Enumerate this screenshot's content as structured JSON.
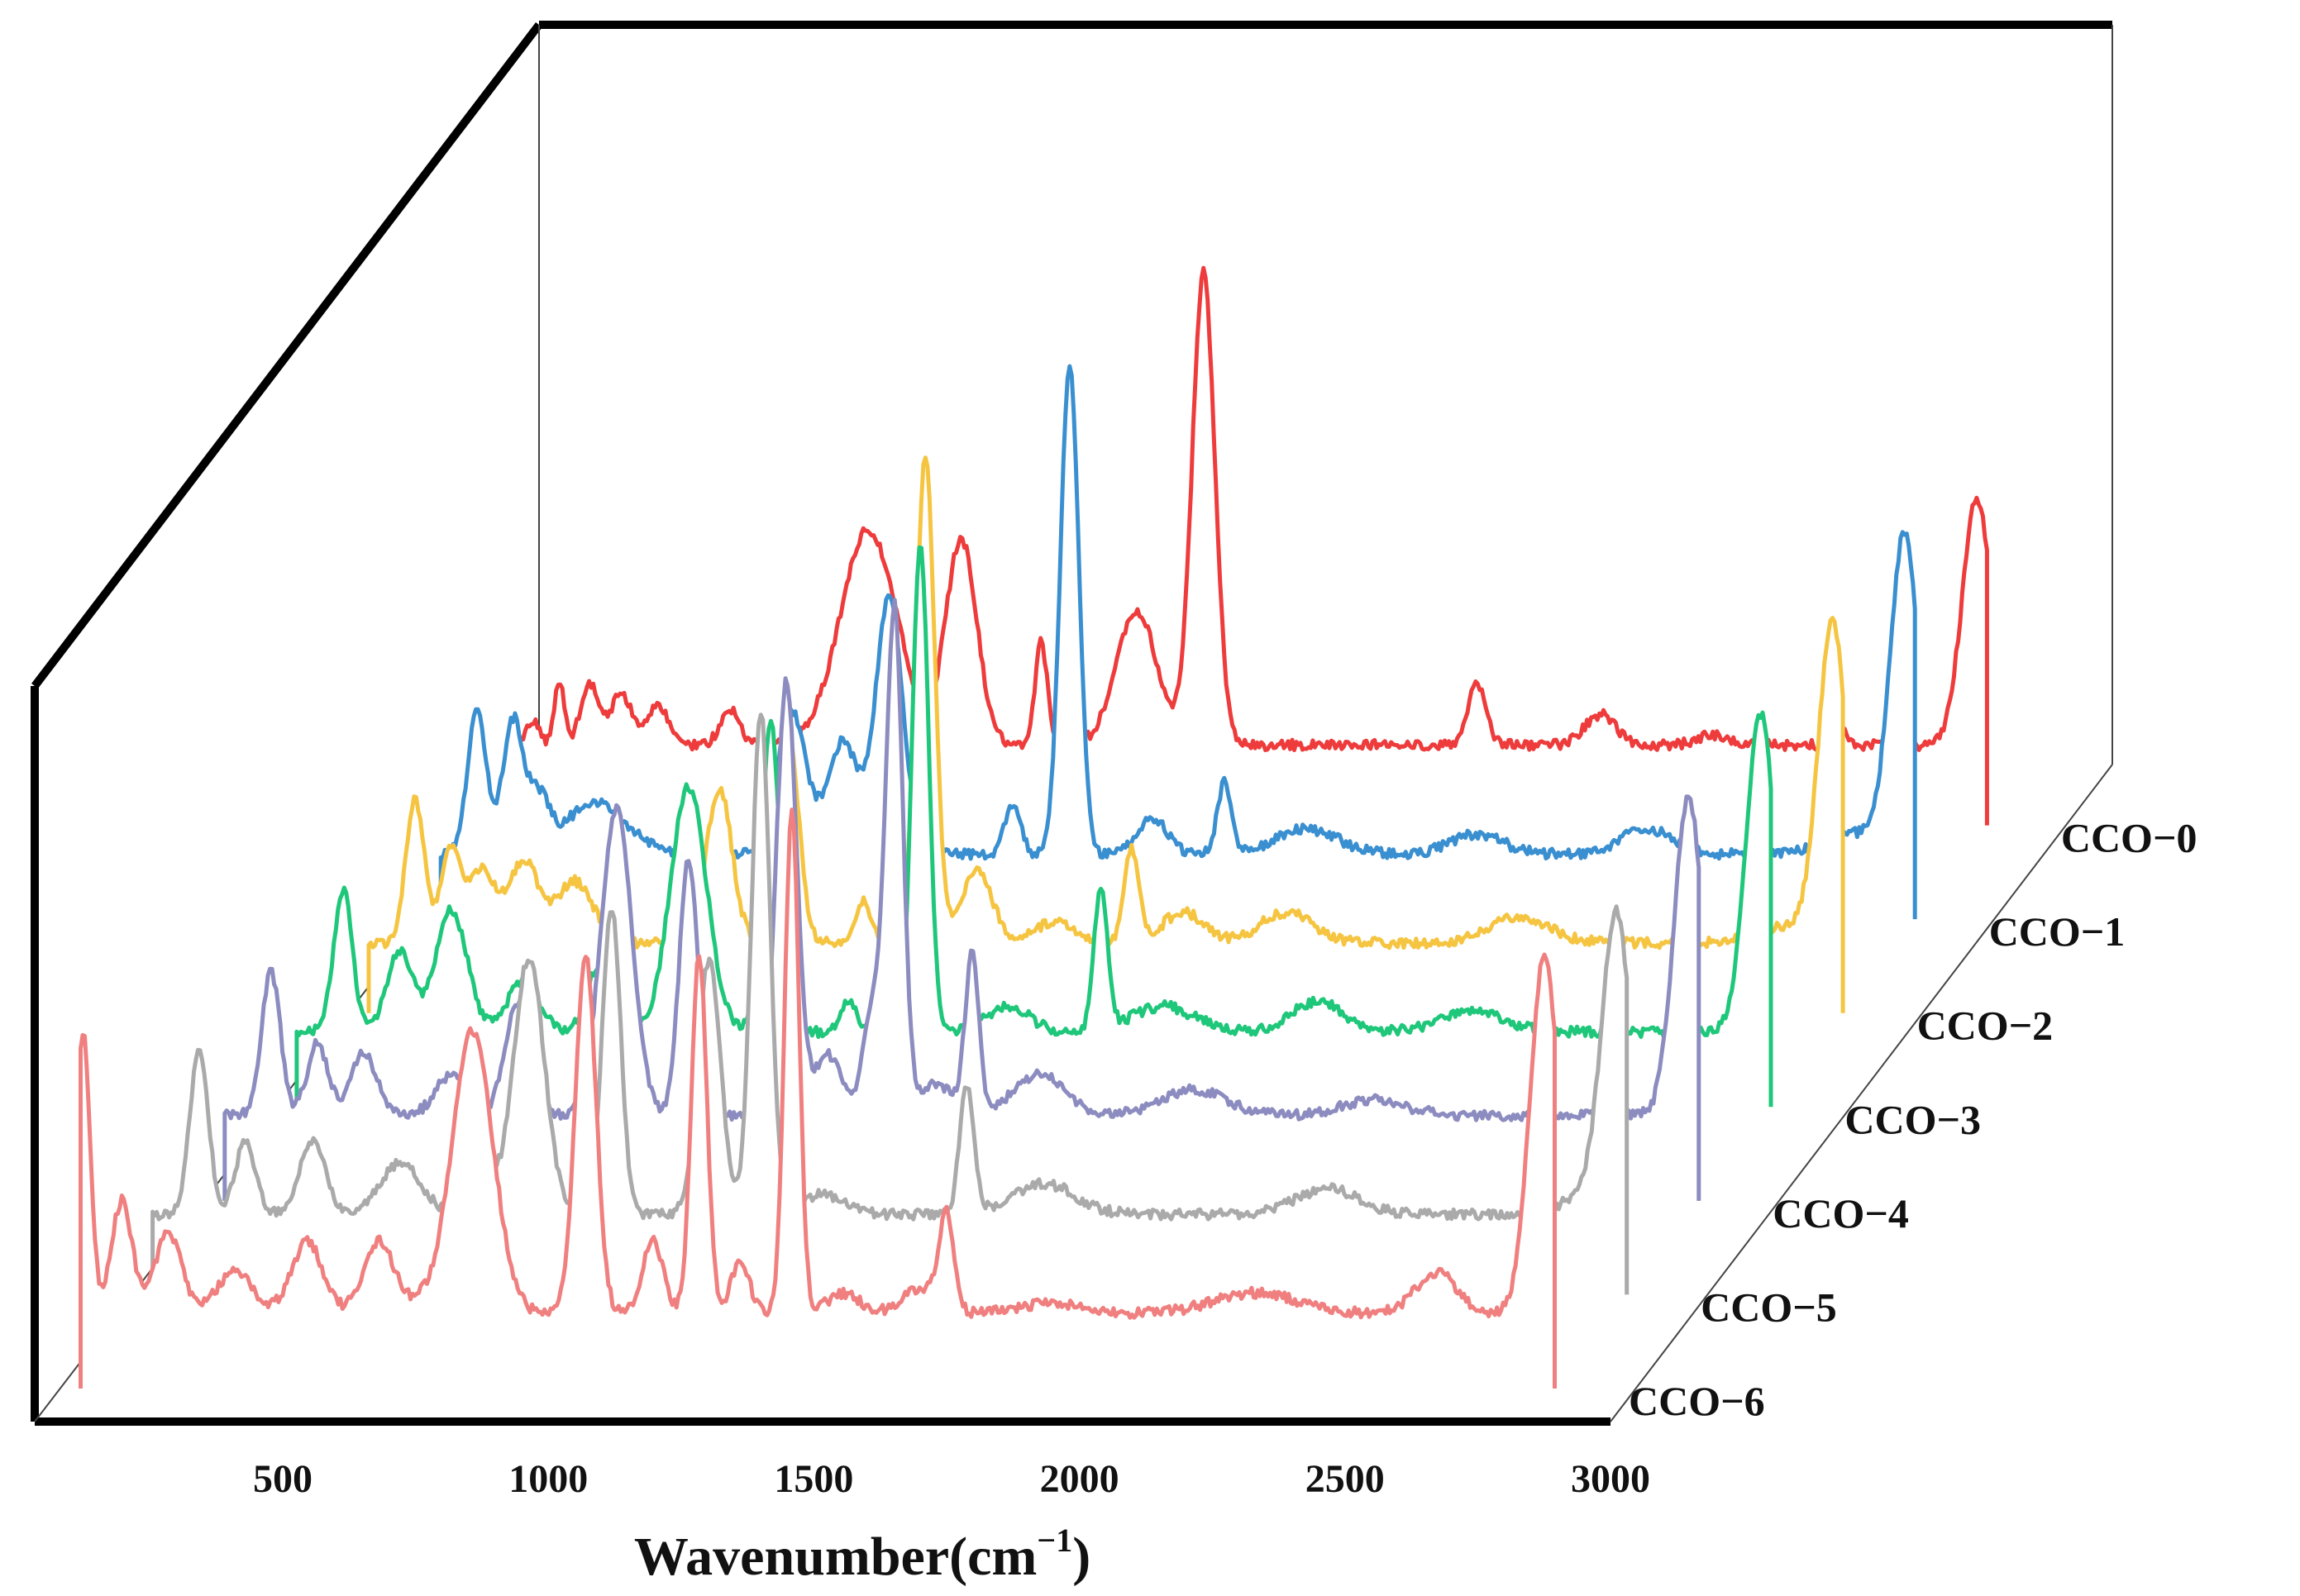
{
  "chart_data": {
    "type": "line",
    "style": "3d-waterfall",
    "title": "",
    "xlabel": "Wavenumber(cm",
    "xlabel_superscript": "−1",
    "xlabel_close": ")",
    "ylabel": "",
    "xlim": [
      100,
      3000
    ],
    "xticks": [
      500,
      1000,
      1500,
      2000,
      2500,
      3000
    ],
    "xtick_labels": [
      "500",
      "1000",
      "1500",
      "2000",
      "2500",
      "3000"
    ],
    "grid": false,
    "legend": "series labels along right depth edge",
    "series": [
      {
        "name": "CCO−0",
        "color": "#ee3b3b",
        "baseline": 0.06,
        "peaks": [
          [
            160,
            0.05,
            12
          ],
          [
            210,
            0.12,
            10
          ],
          [
            270,
            0.12,
            18
          ],
          [
            330,
            0.1,
            20
          ],
          [
            400,
            0.08,
            20
          ],
          [
            540,
            0.07,
            18
          ],
          [
            810,
            0.42,
            55
          ],
          [
            990,
            0.4,
            30
          ],
          [
            1145,
            0.2,
            12
          ],
          [
            1330,
            0.26,
            40
          ],
          [
            1460,
            0.92,
            22
          ],
          [
            1990,
            0.12,
            18
          ],
          [
            2230,
            0.06,
            30
          ],
          [
            2450,
            0.02,
            30
          ],
          [
            2690,
            0.05,
            12
          ],
          [
            2960,
            0.48,
            28
          ]
        ]
      },
      {
        "name": "CCO−1",
        "color": "#3a8fd0",
        "baseline": 0.03,
        "peaks": [
          [
            190,
            0.28,
            18
          ],
          [
            260,
            0.26,
            20
          ],
          [
            310,
            0.1,
            20
          ],
          [
            420,
            0.1,
            60
          ],
          [
            800,
            0.28,
            28
          ],
          [
            900,
            0.22,
            30
          ],
          [
            990,
            0.5,
            26
          ],
          [
            1230,
            0.1,
            15
          ],
          [
            1340,
            0.95,
            18
          ],
          [
            1500,
            0.07,
            30
          ],
          [
            1640,
            0.14,
            13
          ],
          [
            1800,
            0.05,
            60
          ],
          [
            2130,
            0.04,
            50
          ],
          [
            2460,
            0.05,
            50
          ],
          [
            2860,
            0.04,
            60
          ],
          [
            2960,
            0.62,
            28
          ]
        ]
      },
      {
        "name": "CCO−2",
        "color": "#f5c542",
        "baseline": 0.04,
        "peaks": [
          [
            210,
            0.28,
            18
          ],
          [
            280,
            0.18,
            20
          ],
          [
            340,
            0.14,
            25
          ],
          [
            420,
            0.16,
            30
          ],
          [
            520,
            0.12,
            35
          ],
          [
            800,
            0.3,
            25
          ],
          [
            935,
            0.4,
            20
          ],
          [
            1080,
            0.08,
            15
          ],
          [
            1200,
            0.95,
            18
          ],
          [
            1300,
            0.14,
            30
          ],
          [
            1450,
            0.04,
            40
          ],
          [
            1600,
            0.18,
            14
          ],
          [
            1700,
            0.06,
            40
          ],
          [
            1900,
            0.06,
            50
          ],
          [
            2350,
            0.05,
            60
          ],
          [
            2860,
            0.03,
            60
          ],
          [
            2960,
            0.62,
            28
          ]
        ]
      },
      {
        "name": "CCO−3",
        "color": "#1fc77a",
        "baseline": 0.05,
        "peaks": [
          [
            210,
            0.28,
            18
          ],
          [
            320,
            0.16,
            25
          ],
          [
            420,
            0.24,
            30
          ],
          [
            560,
            0.1,
            30
          ],
          [
            700,
            0.12,
            20
          ],
          [
            880,
            0.48,
            35
          ],
          [
            1040,
            0.6,
            18
          ],
          [
            1190,
            0.06,
            15
          ],
          [
            1330,
            0.95,
            16
          ],
          [
            1500,
            0.05,
            40
          ],
          [
            1680,
            0.28,
            13
          ],
          [
            1800,
            0.05,
            60
          ],
          [
            2100,
            0.06,
            50
          ],
          [
            2400,
            0.04,
            60
          ],
          [
            2960,
            0.62,
            28
          ]
        ]
      },
      {
        "name": "CCO−4",
        "color": "#8c8cc0",
        "baseline": 0.07,
        "peaks": [
          [
            210,
            0.28,
            18
          ],
          [
            300,
            0.14,
            20
          ],
          [
            390,
            0.12,
            25
          ],
          [
            560,
            0.08,
            30
          ],
          [
            690,
            0.22,
            25
          ],
          [
            880,
            0.6,
            30
          ],
          [
            1020,
            0.5,
            18
          ],
          [
            1210,
            0.85,
            20
          ],
          [
            1290,
            0.12,
            25
          ],
          [
            1380,
            0.22,
            20
          ],
          [
            1420,
            0.96,
            16
          ],
          [
            1500,
            0.06,
            40
          ],
          [
            1570,
            0.3,
            13
          ],
          [
            1700,
            0.08,
            50
          ],
          [
            2000,
            0.05,
            60
          ],
          [
            2350,
            0.03,
            60
          ],
          [
            2960,
            0.62,
            28
          ]
        ]
      },
      {
        "name": "CCO−5",
        "color": "#aaaaaa",
        "baseline": 0.06,
        "peaks": [
          [
            210,
            0.32,
            18
          ],
          [
            300,
            0.14,
            20
          ],
          [
            430,
            0.14,
            25
          ],
          [
            600,
            0.1,
            40
          ],
          [
            750,
            0.12,
            25
          ],
          [
            850,
            0.5,
            30
          ],
          [
            1010,
            0.6,
            18
          ],
          [
            1200,
            0.5,
            22
          ],
          [
            1300,
            0.98,
            18
          ],
          [
            1420,
            0.04,
            40
          ],
          [
            1700,
            0.25,
            14
          ],
          [
            1850,
            0.06,
            60
          ],
          [
            2400,
            0.05,
            60
          ],
          [
            2900,
            0.04,
            40
          ],
          [
            2960,
            0.58,
            28
          ]
        ]
      },
      {
        "name": "CCO−6",
        "color": "#f08080",
        "baseline": 0.05,
        "peaks": [
          [
            125,
            0.55,
            14
          ],
          [
            200,
            0.22,
            20
          ],
          [
            290,
            0.16,
            25
          ],
          [
            420,
            0.08,
            35
          ],
          [
            560,
            0.14,
            30
          ],
          [
            700,
            0.14,
            30
          ],
          [
            780,
            0.02,
            20
          ],
          [
            880,
            0.55,
            40
          ],
          [
            1100,
            0.7,
            20
          ],
          [
            1230,
            0.14,
            20
          ],
          [
            1320,
            0.7,
            15
          ],
          [
            1400,
            0.1,
            18
          ],
          [
            1500,
            0.98,
            14
          ],
          [
            1600,
            0.04,
            30
          ],
          [
            1750,
            0.05,
            35
          ],
          [
            1800,
            0.18,
            14
          ],
          [
            2000,
            0.02,
            60
          ],
          [
            2400,
            0.04,
            80
          ],
          [
            2750,
            0.08,
            40
          ],
          [
            2960,
            0.7,
            28
          ]
        ]
      }
    ]
  }
}
